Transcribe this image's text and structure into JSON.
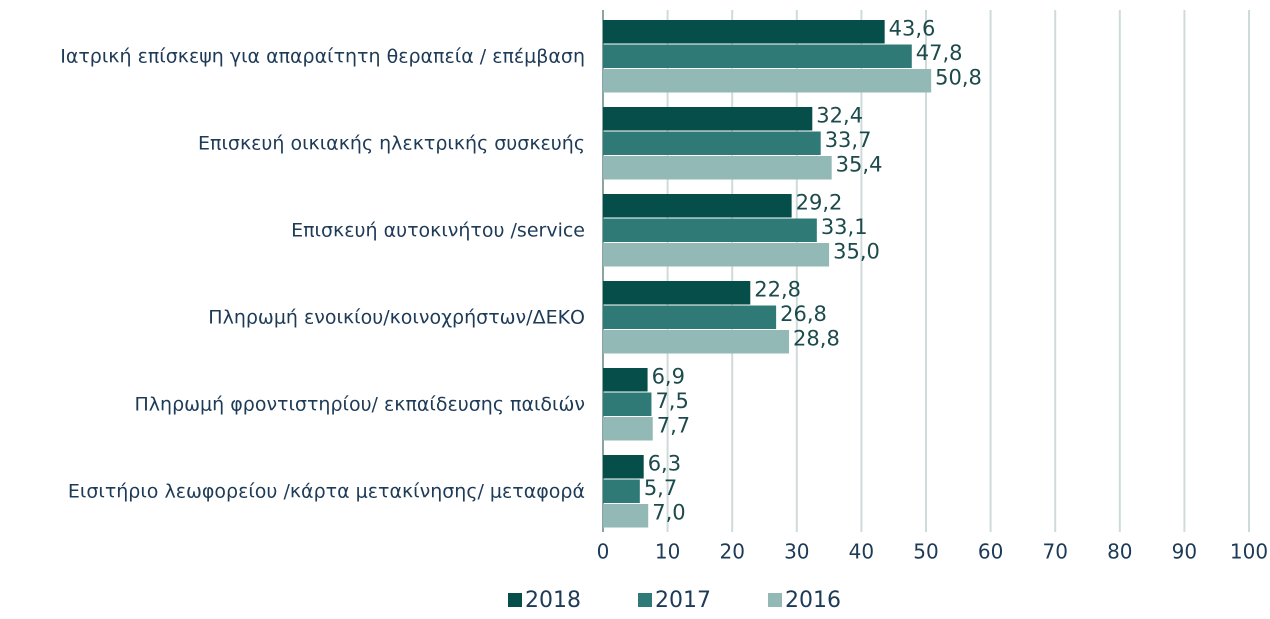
{
  "chart_data": {
    "type": "hbar",
    "categories": [
      "Ιατρική επίσκεψη για απαραίτητη θεραπεία / επέμβαση",
      "Επισκευή οικιακής ηλεκτρικής συσκευής",
      "Επισκευή αυτοκινήτου /service",
      "Πληρωμή ενοικίου/κοινοχρήστων/ΔΕΚΟ",
      "Πληρωμή φροντιστηρίου/  εκπαίδευσης παιδιών",
      "Εισιτήριο λεωφορείου /κάρτα μετακίνησης/  μεταφορά"
    ],
    "series": [
      {
        "name": "2018",
        "color": "#054e4a",
        "values": [
          43.6,
          32.4,
          29.2,
          22.8,
          6.9,
          6.3
        ],
        "value_labels": [
          "43,6",
          "32,4",
          "29,2",
          "22,8",
          "6,9",
          "6,3"
        ]
      },
      {
        "name": "2017",
        "color": "#2f7a76",
        "values": [
          47.8,
          33.7,
          33.1,
          26.8,
          7.5,
          5.7
        ],
        "value_labels": [
          "47,8",
          "33,7",
          "33,1",
          "26,8",
          "7,5",
          "5,7"
        ]
      },
      {
        "name": "2016",
        "color": "#93b9b6",
        "values": [
          50.8,
          35.4,
          35.0,
          28.8,
          7.7,
          7.0
        ],
        "value_labels": [
          "50,8",
          "35,4",
          "35,0",
          "28,8",
          "7,7",
          "7,0"
        ]
      }
    ],
    "xlim": [
      0,
      100
    ],
    "xticks": [
      0,
      10,
      20,
      30,
      40,
      50,
      60,
      70,
      80,
      90,
      100
    ],
    "grid": true,
    "legend": "bottom"
  }
}
